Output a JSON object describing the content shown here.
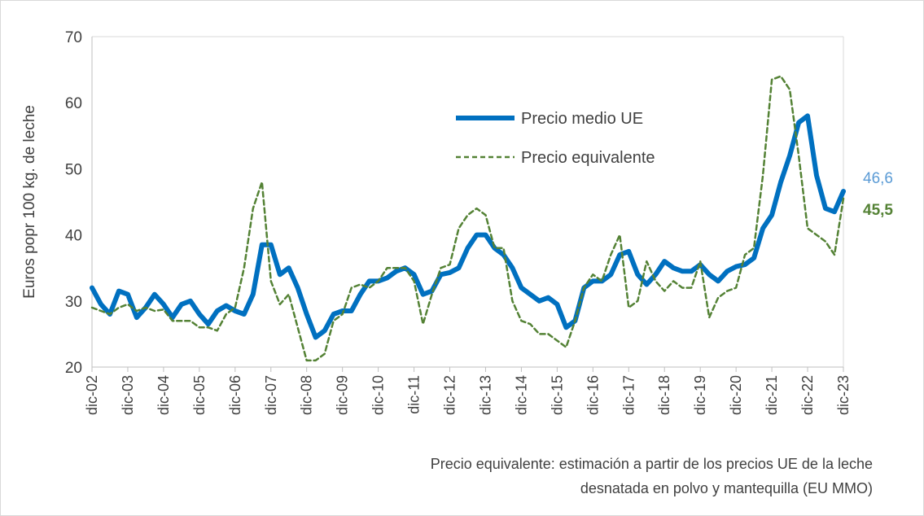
{
  "chart_data": {
    "type": "line",
    "y_label": "Euros popr 100 kg. de leche",
    "note": [
      "Precio equivalente: estimación a partir de los precios UE de la leche",
      "desnatada en polvo y mantequilla (EU MMO)"
    ],
    "categories": [
      "dic-02",
      null,
      null,
      null,
      "dic-03",
      null,
      null,
      null,
      "dic-04",
      null,
      null,
      null,
      "dic-05",
      null,
      null,
      null,
      "dic-06",
      null,
      null,
      null,
      "dic-07",
      null,
      null,
      null,
      "dic-08",
      null,
      null,
      null,
      "dic-09",
      null,
      null,
      null,
      "dic-10",
      null,
      null,
      null,
      "dic-11",
      null,
      null,
      null,
      "dic-12",
      null,
      null,
      null,
      "dic-13",
      null,
      null,
      null,
      "dic-14",
      null,
      null,
      null,
      "dic-15",
      null,
      null,
      null,
      "dic-16",
      null,
      null,
      null,
      "dic-17",
      null,
      null,
      null,
      "dic-18",
      null,
      null,
      null,
      "dic-19",
      null,
      null,
      null,
      "dic-20",
      null,
      null,
      null,
      "dic-21",
      null,
      null,
      null,
      "dic-22",
      null,
      null,
      null,
      "dic-23"
    ],
    "series": [
      {
        "name": "Precio medio UE",
        "color": "#0070c0",
        "dashed": false,
        "last_label": "46,6",
        "label_color": "#5b9bd5",
        "values": [
          32,
          29.5,
          28,
          31.5,
          31,
          27.5,
          29,
          31,
          29.5,
          27.5,
          29.5,
          30,
          28,
          26.5,
          28.5,
          29.3,
          28.5,
          28,
          31,
          38.5,
          38.5,
          34,
          35,
          32,
          28,
          24.5,
          25.5,
          28,
          28.5,
          28.5,
          31,
          33,
          33,
          33.5,
          34.5,
          35,
          34,
          31,
          31.5,
          34,
          34.3,
          35,
          38,
          40,
          40,
          38,
          37,
          35,
          32,
          31,
          30,
          30.5,
          29.5,
          26,
          27,
          32,
          33,
          33,
          34,
          37,
          37.5,
          34,
          32.5,
          34,
          36,
          35,
          34.5,
          34.5,
          35.5,
          34,
          33,
          34.5,
          35.2,
          35.5,
          36.5,
          41,
          43,
          48,
          52,
          57,
          58,
          49,
          44,
          43.5,
          46.6
        ]
      },
      {
        "name": "Precio equivalente",
        "color": "#548235",
        "dashed": true,
        "last_label": "45,5",
        "label_color": "#548235",
        "values": [
          29,
          28.5,
          28,
          29,
          29.5,
          28.5,
          29,
          28.5,
          28.7,
          27,
          27,
          27,
          26,
          26,
          25.5,
          28,
          29,
          35,
          44,
          48,
          33,
          29.5,
          31,
          26,
          21,
          21,
          22,
          27,
          28,
          32,
          32.5,
          32,
          33,
          35,
          35,
          35,
          33,
          26.5,
          31,
          35,
          35.5,
          41,
          43,
          44,
          43,
          38,
          38,
          30,
          27,
          26.5,
          25,
          25,
          24,
          23,
          27,
          32,
          34,
          33,
          37,
          40,
          29,
          30,
          36,
          33,
          31.5,
          33,
          32,
          32,
          36,
          27.5,
          30.5,
          31.5,
          32,
          37,
          38,
          49,
          63.5,
          64,
          62,
          52,
          41,
          40,
          39,
          37,
          45.5
        ]
      }
    ],
    "ylim": [
      20,
      70
    ],
    "yticks": [
      20,
      30,
      40,
      50,
      60,
      70
    ],
    "grid": false,
    "legend": "upper right"
  }
}
